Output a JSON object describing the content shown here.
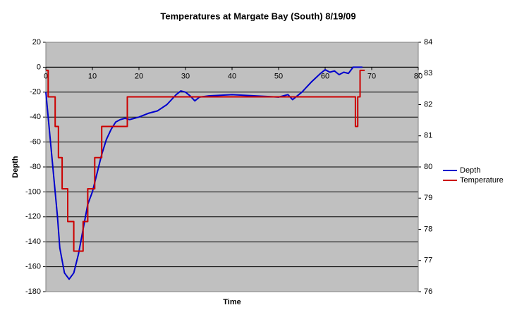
{
  "chart_data": {
    "type": "line",
    "title": "Temperatures at Margate Bay (South) 8/19/09",
    "x_label": "Time",
    "y_label": "Depth",
    "xlim": [
      0,
      80
    ],
    "xticks": [
      0,
      10,
      20,
      30,
      40,
      50,
      60,
      70,
      80
    ],
    "ylim": [
      -180,
      20
    ],
    "yticks": [
      -180,
      -160,
      -140,
      -120,
      -100,
      -80,
      -60,
      -40,
      -20,
      0,
      20
    ],
    "y2lim": [
      76,
      84
    ],
    "y2ticks": [
      76,
      77,
      78,
      79,
      80,
      81,
      82,
      83,
      84
    ],
    "grid": true,
    "legend": "right",
    "series": [
      {
        "name": "Depth",
        "color": "#0000cc",
        "x": [
          0,
          1,
          2,
          2.5,
          3,
          3.5,
          4,
          5,
          6,
          7,
          8,
          9,
          10,
          11,
          12,
          13,
          14,
          15,
          16,
          17,
          18,
          20,
          22,
          24,
          26,
          28,
          29,
          30,
          31,
          32,
          33,
          35,
          40,
          45,
          50,
          52,
          53,
          55,
          57,
          59,
          60,
          61,
          62,
          63,
          64,
          65,
          66,
          67,
          68
        ],
        "values": [
          -20,
          -60,
          -100,
          -120,
          -145,
          -155,
          -165,
          -170,
          -165,
          -150,
          -130,
          -110,
          -100,
          -85,
          -70,
          -58,
          -50,
          -44,
          -42,
          -41,
          -42,
          -40,
          -37,
          -35,
          -30,
          -22,
          -19,
          -20,
          -23,
          -27,
          -24,
          -23,
          -22,
          -23,
          -24,
          -22,
          -26,
          -20,
          -12,
          -5,
          -2,
          -4,
          -3,
          -6,
          -4,
          -5,
          0,
          0,
          0
        ]
      },
      {
        "name": "Temperature",
        "color": "#cc0000",
        "axis": "y2",
        "x": [
          0,
          0.5,
          0.5,
          2,
          2,
          2.7,
          2.7,
          3.5,
          3.5,
          4.7,
          4.7,
          6,
          6,
          8,
          8,
          9,
          9,
          10.5,
          10.5,
          12,
          12,
          17.5,
          17.5,
          66.5,
          66.5,
          67,
          67,
          67.5,
          67.5,
          68.5
        ],
        "values": [
          83.1,
          83.1,
          82.25,
          82.25,
          81.3,
          81.3,
          80.3,
          80.3,
          79.3,
          79.3,
          78.25,
          78.25,
          77.3,
          77.3,
          78.25,
          78.25,
          79.3,
          79.3,
          80.3,
          80.3,
          81.3,
          81.3,
          82.25,
          82.25,
          81.3,
          81.3,
          82.25,
          82.25,
          83.1,
          83.1
        ]
      }
    ]
  }
}
